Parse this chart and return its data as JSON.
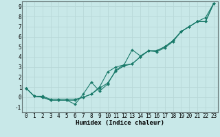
{
  "background_color": "#c8e8e8",
  "grid_color": "#b8d8d8",
  "line_color": "#1a7a6a",
  "xlabel": "Humidex (Indice chaleur)",
  "xlim": [
    -0.5,
    23.5
  ],
  "ylim": [
    -1.5,
    9.5
  ],
  "xticks": [
    0,
    1,
    2,
    3,
    4,
    5,
    6,
    7,
    8,
    9,
    10,
    11,
    12,
    13,
    14,
    15,
    16,
    17,
    18,
    19,
    20,
    21,
    22,
    23
  ],
  "yticks": [
    -1,
    0,
    1,
    2,
    3,
    4,
    5,
    6,
    7,
    8,
    9
  ],
  "line1_x": [
    0,
    1,
    2,
    3,
    4,
    5,
    6,
    7,
    8,
    9,
    10,
    11,
    12,
    13,
    14,
    15,
    16,
    17,
    18,
    19,
    20,
    21,
    22,
    23
  ],
  "line1_y": [
    0.9,
    0.1,
    0.1,
    -0.2,
    -0.2,
    -0.2,
    -0.2,
    0.0,
    0.3,
    0.9,
    1.4,
    2.6,
    3.1,
    3.3,
    4.0,
    4.6,
    4.6,
    5.0,
    5.6,
    6.5,
    7.0,
    7.5,
    7.9,
    9.3
  ],
  "line2_x": [
    0,
    1,
    2,
    3,
    4,
    5,
    6,
    7,
    8,
    9,
    10,
    11,
    12,
    13,
    14,
    15,
    16,
    17,
    18,
    19,
    20,
    21,
    22,
    23
  ],
  "line2_y": [
    0.9,
    0.1,
    0.0,
    -0.3,
    -0.3,
    -0.3,
    -0.7,
    0.3,
    1.5,
    0.6,
    1.3,
    2.7,
    3.2,
    4.7,
    4.1,
    4.6,
    4.6,
    5.0,
    5.6,
    6.5,
    7.0,
    7.5,
    7.5,
    9.3
  ],
  "line3_x": [
    0,
    1,
    2,
    3,
    4,
    5,
    6,
    7,
    8,
    9,
    10,
    11,
    12,
    13,
    14,
    15,
    16,
    17,
    18,
    19,
    20,
    21,
    22,
    23
  ],
  "line3_y": [
    0.9,
    0.1,
    0.0,
    -0.3,
    -0.3,
    -0.3,
    -0.3,
    0.0,
    0.3,
    1.0,
    2.5,
    3.0,
    3.2,
    3.3,
    4.0,
    4.6,
    4.5,
    4.9,
    5.5,
    6.5,
    7.0,
    7.5,
    7.5,
    9.3
  ],
  "marker_size": 2.0,
  "font_size": 5.5,
  "xlabel_font_size": 6.5
}
